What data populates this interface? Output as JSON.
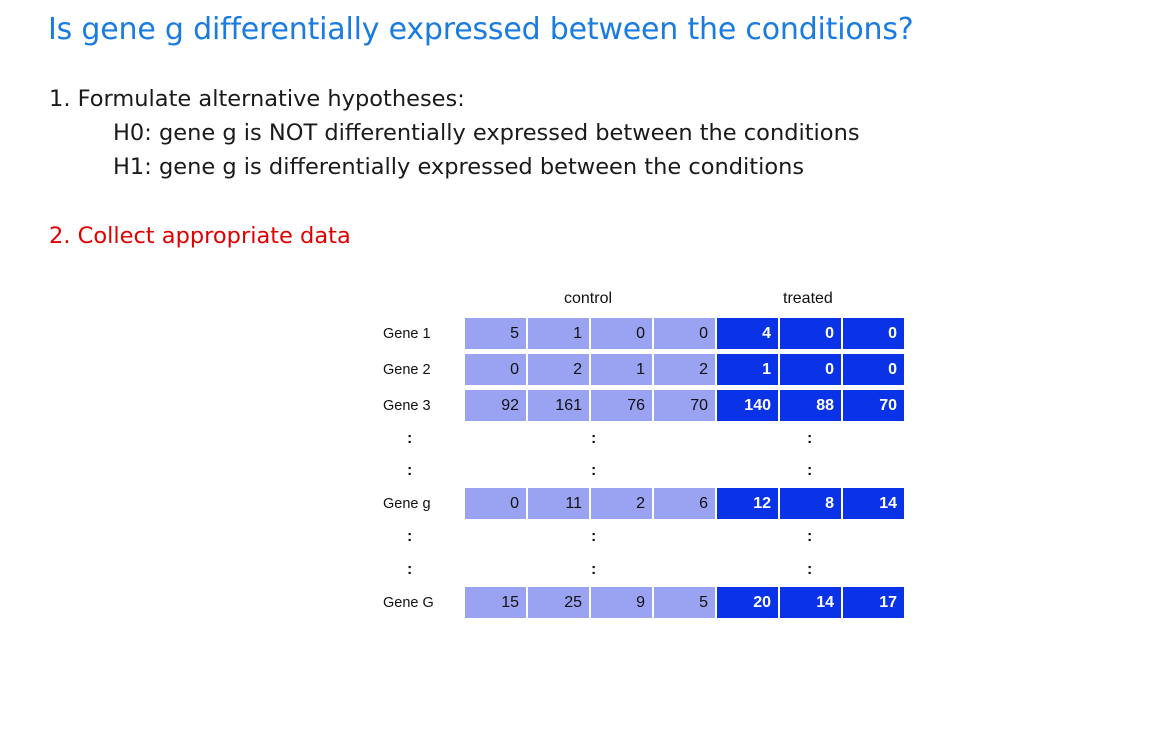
{
  "title": "Is gene g differentially expressed between the conditions?",
  "step1": {
    "heading": "1. Formulate alternative hypotheses:",
    "h0": "H0: gene g is NOT differentially expressed between the conditions",
    "h1": "H1: gene g is differentially expressed between the conditions"
  },
  "step2": {
    "heading": "2. Collect appropriate data"
  },
  "table": {
    "groups": {
      "control": "control",
      "treated": "treated"
    },
    "ellipsis": ":",
    "rows": [
      {
        "label": "Gene 1",
        "control": [
          "5",
          "1",
          "0",
          "0"
        ],
        "treated": [
          "4",
          "0",
          "0"
        ]
      },
      {
        "label": "Gene 2",
        "control": [
          "0",
          "2",
          "1",
          "2"
        ],
        "treated": [
          "1",
          "0",
          "0"
        ]
      },
      {
        "label": "Gene 3",
        "control": [
          "92",
          "161",
          "76",
          "70"
        ],
        "treated": [
          "140",
          "88",
          "70"
        ]
      },
      {
        "label": "Gene g",
        "control": [
          "0",
          "11",
          "2",
          "6"
        ],
        "treated": [
          "12",
          "8",
          "14"
        ]
      },
      {
        "label": "Gene G",
        "control": [
          "15",
          "25",
          "9",
          "5"
        ],
        "treated": [
          "20",
          "14",
          "17"
        ]
      }
    ]
  },
  "colors": {
    "title": "#1a7be0",
    "step2": "#e00000",
    "control_cell": "#9aa3f2",
    "treated_cell": "#0a33e8"
  }
}
